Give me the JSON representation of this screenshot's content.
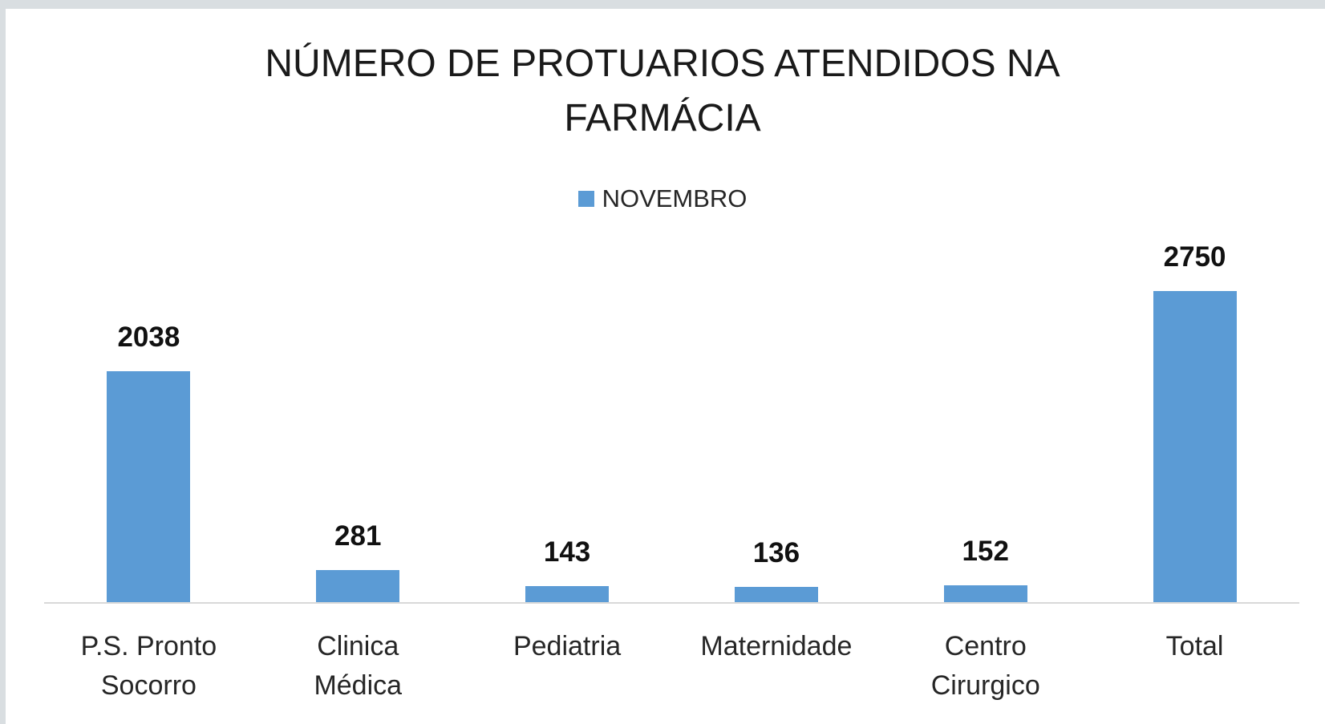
{
  "chart_data": {
    "type": "bar",
    "title": "NÚMERO DE PROTUARIOS ATENDIDOS NA FARMÁCIA",
    "categories": [
      "P.S. Pronto Socorro",
      "Clinica Médica",
      "Pediatria",
      "Maternidade",
      "Centro Cirurgico",
      "Total"
    ],
    "series": [
      {
        "name": "NOVEMBRO",
        "color": "#5b9bd5",
        "values": [
          2038,
          281,
          143,
          136,
          152,
          2750
        ]
      }
    ],
    "legend": "top"
  }
}
